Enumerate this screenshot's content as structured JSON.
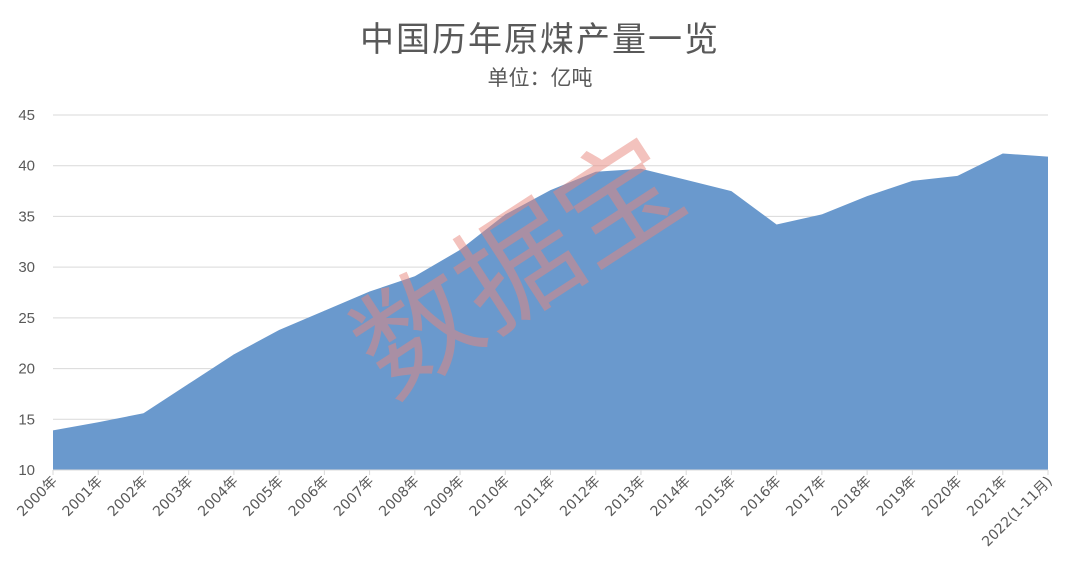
{
  "chart_data": {
    "type": "area",
    "title": "中国历年原煤产量一览",
    "subtitle": "单位：亿吨",
    "categories": [
      "2000年",
      "2001年",
      "2002年",
      "2003年",
      "2004年",
      "2005年",
      "2006年",
      "2007年",
      "2008年",
      "2009年",
      "2010年",
      "2011年",
      "2012年",
      "2013年",
      "2014年",
      "2015年",
      "2016年",
      "2017年",
      "2018年",
      "2019年",
      "2020年",
      "2021年",
      "2022(1-11月)"
    ],
    "values": [
      13.9,
      14.7,
      15.6,
      18.5,
      21.4,
      23.8,
      25.7,
      27.6,
      29.1,
      31.7,
      35.2,
      37.6,
      39.4,
      39.7,
      38.6,
      37.5,
      34.2,
      35.2,
      37.0,
      38.5,
      39.0,
      41.2,
      40.9
    ],
    "ylim": [
      10,
      45
    ],
    "yticks": [
      10,
      15,
      20,
      25,
      30,
      35,
      40,
      45
    ],
    "grid": true,
    "color": "#6a99cd",
    "watermark": "数据宝"
  }
}
